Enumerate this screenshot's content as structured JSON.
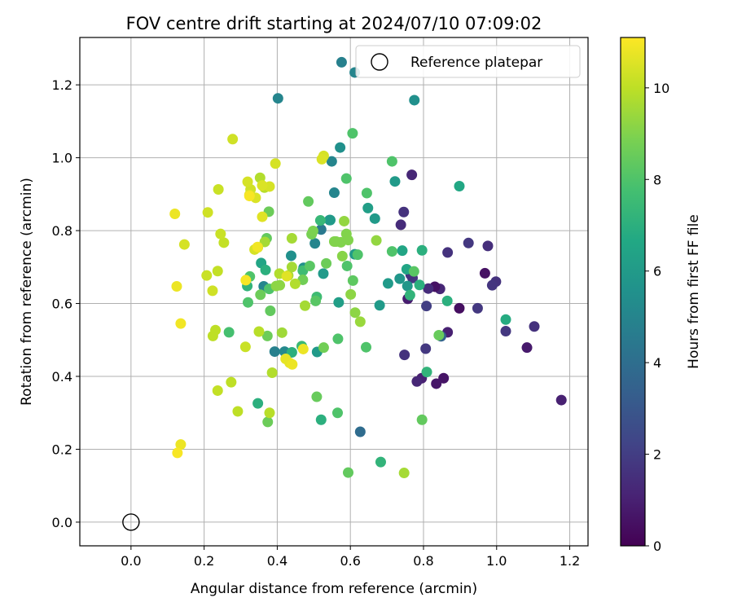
{
  "chart_data": {
    "type": "scatter",
    "title": "FOV centre drift starting at 2024/07/10 07:09:02",
    "xlabel": "Angular distance from reference (arcmin)",
    "ylabel": "Rotation from reference (arcmin)",
    "xlim": [
      -0.14,
      1.25
    ],
    "ylim": [
      -0.065,
      1.33
    ],
    "xticks": [
      0.0,
      0.2,
      0.4,
      0.6,
      0.8,
      1.0,
      1.2
    ],
    "yticks": [
      0.0,
      0.2,
      0.4,
      0.6,
      0.8,
      1.0,
      1.2
    ],
    "grid": true,
    "legend": {
      "position": "top-right",
      "entries": [
        "Reference platepar"
      ]
    },
    "reference_point": {
      "x": 0.0,
      "y": 0.0
    },
    "colorbar": {
      "label": "Hours from first FF file",
      "colormap": "viridis",
      "range": [
        0,
        11.1
      ],
      "ticks": [
        0,
        2,
        4,
        6,
        8,
        10
      ]
    },
    "series": [
      {
        "points": [
          {
            "x": 1.177,
            "y": 0.335,
            "c": 1.0
          },
          {
            "x": 1.103,
            "y": 0.537,
            "c": 1.6
          },
          {
            "x": 1.083,
            "y": 0.479,
            "c": 0.8
          },
          {
            "x": 1.025,
            "y": 0.524,
            "c": 1.8
          },
          {
            "x": 0.998,
            "y": 0.66,
            "c": 1.6
          },
          {
            "x": 0.988,
            "y": 0.65,
            "c": 1.7
          },
          {
            "x": 0.976,
            "y": 0.758,
            "c": 1.5
          },
          {
            "x": 0.968,
            "y": 0.683,
            "c": 0.5
          },
          {
            "x": 0.923,
            "y": 0.766,
            "c": 1.8
          },
          {
            "x": 0.948,
            "y": 0.587,
            "c": 1.8
          },
          {
            "x": 0.898,
            "y": 0.587,
            "c": 0.4
          },
          {
            "x": 0.866,
            "y": 0.74,
            "c": 1.6
          },
          {
            "x": 0.866,
            "y": 0.521,
            "c": 1.0
          },
          {
            "x": 0.855,
            "y": 0.395,
            "c": 0.6
          },
          {
            "x": 0.835,
            "y": 0.38,
            "c": 0.7
          },
          {
            "x": 0.845,
            "y": 0.64,
            "c": 1.2
          },
          {
            "x": 0.831,
            "y": 0.646,
            "c": 0.5
          },
          {
            "x": 0.813,
            "y": 0.641,
            "c": 1.4
          },
          {
            "x": 0.808,
            "y": 0.593,
            "c": 2.0
          },
          {
            "x": 0.806,
            "y": 0.476,
            "c": 1.8
          },
          {
            "x": 0.795,
            "y": 0.395,
            "c": 1.0
          },
          {
            "x": 0.782,
            "y": 0.386,
            "c": 1.2
          },
          {
            "x": 0.77,
            "y": 0.67,
            "c": 1.8
          },
          {
            "x": 0.768,
            "y": 0.953,
            "c": 1.2
          },
          {
            "x": 0.765,
            "y": 0.679,
            "c": 1.6
          },
          {
            "x": 0.748,
            "y": 0.459,
            "c": 1.6
          },
          {
            "x": 0.746,
            "y": 0.851,
            "c": 1.6
          },
          {
            "x": 0.738,
            "y": 0.816,
            "c": 1.4
          },
          {
            "x": 0.757,
            "y": 0.613,
            "c": 0.9
          },
          {
            "x": 0.848,
            "y": 0.51,
            "c": 3.5
          },
          {
            "x": 0.627,
            "y": 0.248,
            "c": 3.9
          },
          {
            "x": 0.612,
            "y": 1.234,
            "c": 5.0
          },
          {
            "x": 0.576,
            "y": 1.262,
            "c": 4.8
          },
          {
            "x": 0.402,
            "y": 1.163,
            "c": 5.0
          },
          {
            "x": 0.775,
            "y": 1.158,
            "c": 5.5
          },
          {
            "x": 0.572,
            "y": 1.028,
            "c": 5.5
          },
          {
            "x": 0.549,
            "y": 0.99,
            "c": 5.0
          },
          {
            "x": 0.556,
            "y": 0.904,
            "c": 5.0
          },
          {
            "x": 0.543,
            "y": 0.829,
            "c": 5.5
          },
          {
            "x": 0.52,
            "y": 0.803,
            "c": 4.5
          },
          {
            "x": 0.503,
            "y": 0.765,
            "c": 5.0
          },
          {
            "x": 0.438,
            "y": 0.731,
            "c": 5.5
          },
          {
            "x": 0.472,
            "y": 0.698,
            "c": 5.5
          },
          {
            "x": 0.363,
            "y": 0.647,
            "c": 5.0
          },
          {
            "x": 0.393,
            "y": 0.468,
            "c": 4.8
          },
          {
            "x": 0.42,
            "y": 0.468,
            "c": 5.2
          },
          {
            "x": 0.509,
            "y": 0.467,
            "c": 6.0
          },
          {
            "x": 0.612,
            "y": 0.735,
            "c": 6.0
          },
          {
            "x": 0.667,
            "y": 0.833,
            "c": 6.0
          },
          {
            "x": 0.648,
            "y": 0.862,
            "c": 6.2
          },
          {
            "x": 0.722,
            "y": 0.935,
            "c": 6.0
          },
          {
            "x": 0.735,
            "y": 0.668,
            "c": 5.8
          },
          {
            "x": 0.756,
            "y": 0.648,
            "c": 5.8
          },
          {
            "x": 0.703,
            "y": 0.655,
            "c": 6.0
          },
          {
            "x": 0.68,
            "y": 0.595,
            "c": 6.0
          },
          {
            "x": 0.568,
            "y": 0.603,
            "c": 6.2
          },
          {
            "x": 0.526,
            "y": 0.682,
            "c": 6.0
          },
          {
            "x": 0.545,
            "y": 0.829,
            "c": 6.0
          },
          {
            "x": 0.898,
            "y": 0.922,
            "c": 6.6
          },
          {
            "x": 0.742,
            "y": 0.745,
            "c": 6.5
          },
          {
            "x": 0.754,
            "y": 0.694,
            "c": 6.5
          },
          {
            "x": 0.789,
            "y": 0.651,
            "c": 7.0
          },
          {
            "x": 0.796,
            "y": 0.746,
            "c": 7.0
          },
          {
            "x": 0.865,
            "y": 0.607,
            "c": 7.0
          },
          {
            "x": 1.025,
            "y": 0.556,
            "c": 6.8
          },
          {
            "x": 0.809,
            "y": 0.412,
            "c": 7.2
          },
          {
            "x": 0.763,
            "y": 0.623,
            "c": 7.2
          },
          {
            "x": 0.683,
            "y": 0.165,
            "c": 7.2
          },
          {
            "x": 0.52,
            "y": 0.281,
            "c": 7.0
          },
          {
            "x": 0.356,
            "y": 0.711,
            "c": 6.5
          },
          {
            "x": 0.347,
            "y": 0.326,
            "c": 7.0
          },
          {
            "x": 0.318,
            "y": 0.648,
            "c": 7.2
          },
          {
            "x": 0.467,
            "y": 0.483,
            "c": 7.5
          },
          {
            "x": 0.508,
            "y": 0.618,
            "c": 7.6
          },
          {
            "x": 0.518,
            "y": 0.828,
            "c": 7.4
          },
          {
            "x": 0.47,
            "y": 0.69,
            "c": 7.6
          },
          {
            "x": 0.44,
            "y": 0.466,
            "c": 7.0
          },
          {
            "x": 0.368,
            "y": 0.692,
            "c": 7.0
          },
          {
            "x": 0.714,
            "y": 0.99,
            "c": 8.0
          },
          {
            "x": 0.606,
            "y": 1.067,
            "c": 8.0
          },
          {
            "x": 0.589,
            "y": 0.943,
            "c": 8.0
          },
          {
            "x": 0.645,
            "y": 0.903,
            "c": 8.0
          },
          {
            "x": 0.714,
            "y": 0.743,
            "c": 8.0
          },
          {
            "x": 0.62,
            "y": 0.734,
            "c": 8.0
          },
          {
            "x": 0.591,
            "y": 0.703,
            "c": 8.0
          },
          {
            "x": 0.607,
            "y": 0.663,
            "c": 8.3
          },
          {
            "x": 0.566,
            "y": 0.503,
            "c": 8.0
          },
          {
            "x": 0.643,
            "y": 0.48,
            "c": 8.0
          },
          {
            "x": 0.565,
            "y": 0.3,
            "c": 8.0
          },
          {
            "x": 0.594,
            "y": 0.136,
            "c": 8.4
          },
          {
            "x": 0.796,
            "y": 0.281,
            "c": 8.4
          },
          {
            "x": 0.842,
            "y": 0.513,
            "c": 8.5
          },
          {
            "x": 0.774,
            "y": 0.688,
            "c": 8.2
          },
          {
            "x": 0.268,
            "y": 0.521,
            "c": 7.8
          },
          {
            "x": 0.32,
            "y": 0.603,
            "c": 8.0
          },
          {
            "x": 0.325,
            "y": 0.674,
            "c": 8.0
          },
          {
            "x": 0.378,
            "y": 0.64,
            "c": 8.0
          },
          {
            "x": 0.489,
            "y": 0.703,
            "c": 8.2
          },
          {
            "x": 0.485,
            "y": 0.88,
            "c": 8.4
          },
          {
            "x": 0.505,
            "y": 0.607,
            "c": 8.2
          },
          {
            "x": 0.508,
            "y": 0.344,
            "c": 8.5
          },
          {
            "x": 0.374,
            "y": 0.275,
            "c": 8.6
          },
          {
            "x": 0.371,
            "y": 0.779,
            "c": 8.4
          },
          {
            "x": 0.354,
            "y": 0.624,
            "c": 8.6
          },
          {
            "x": 0.377,
            "y": 0.852,
            "c": 8.6
          },
          {
            "x": 0.381,
            "y": 0.58,
            "c": 8.4
          },
          {
            "x": 0.373,
            "y": 0.511,
            "c": 8.6
          },
          {
            "x": 0.527,
            "y": 0.479,
            "c": 8.7
          },
          {
            "x": 0.47,
            "y": 0.665,
            "c": 8.7
          },
          {
            "x": 0.534,
            "y": 0.71,
            "c": 8.6
          },
          {
            "x": 0.494,
            "y": 0.79,
            "c": 8.8
          },
          {
            "x": 0.498,
            "y": 0.799,
            "c": 8.9
          },
          {
            "x": 0.561,
            "y": 0.77,
            "c": 9.0
          },
          {
            "x": 0.574,
            "y": 0.768,
            "c": 9.0
          },
          {
            "x": 0.578,
            "y": 0.73,
            "c": 9.1
          },
          {
            "x": 0.583,
            "y": 0.826,
            "c": 9.3
          },
          {
            "x": 0.601,
            "y": 0.625,
            "c": 9.2
          },
          {
            "x": 0.627,
            "y": 0.55,
            "c": 9.4
          },
          {
            "x": 0.613,
            "y": 0.575,
            "c": 9.2
          },
          {
            "x": 0.671,
            "y": 0.773,
            "c": 9.3
          },
          {
            "x": 0.747,
            "y": 0.135,
            "c": 9.6
          },
          {
            "x": 0.589,
            "y": 0.791,
            "c": 9.0
          },
          {
            "x": 0.556,
            "y": 0.77,
            "c": 9.0
          },
          {
            "x": 0.594,
            "y": 0.774,
            "c": 9.0
          },
          {
            "x": 0.397,
            "y": 0.648,
            "c": 9.2
          },
          {
            "x": 0.407,
            "y": 0.65,
            "c": 9.2
          },
          {
            "x": 0.413,
            "y": 0.52,
            "c": 9.5
          },
          {
            "x": 0.44,
            "y": 0.779,
            "c": 9.6
          },
          {
            "x": 0.44,
            "y": 0.7,
            "c": 9.6
          },
          {
            "x": 0.476,
            "y": 0.594,
            "c": 9.6
          },
          {
            "x": 0.449,
            "y": 0.654,
            "c": 9.8
          },
          {
            "x": 0.43,
            "y": 0.677,
            "c": 9.7
          },
          {
            "x": 0.406,
            "y": 0.682,
            "c": 9.8
          },
          {
            "x": 0.366,
            "y": 0.769,
            "c": 9.6
          },
          {
            "x": 0.353,
            "y": 0.945,
            "c": 9.8
          },
          {
            "x": 0.365,
            "y": 0.918,
            "c": 9.9
          },
          {
            "x": 0.386,
            "y": 0.41,
            "c": 9.8
          },
          {
            "x": 0.379,
            "y": 0.3,
            "c": 9.9
          },
          {
            "x": 0.35,
            "y": 0.523,
            "c": 9.9
          },
          {
            "x": 0.313,
            "y": 0.481,
            "c": 10.2
          },
          {
            "x": 0.292,
            "y": 0.304,
            "c": 10.0
          },
          {
            "x": 0.274,
            "y": 0.384,
            "c": 10.0
          },
          {
            "x": 0.237,
            "y": 0.361,
            "c": 10.1
          },
          {
            "x": 0.231,
            "y": 0.527,
            "c": 10.0
          },
          {
            "x": 0.224,
            "y": 0.511,
            "c": 10.0
          },
          {
            "x": 0.237,
            "y": 0.689,
            "c": 10.1
          },
          {
            "x": 0.254,
            "y": 0.767,
            "c": 10.1
          },
          {
            "x": 0.239,
            "y": 0.913,
            "c": 10.2
          },
          {
            "x": 0.245,
            "y": 0.791,
            "c": 10.2
          },
          {
            "x": 0.223,
            "y": 0.635,
            "c": 10.3
          },
          {
            "x": 0.207,
            "y": 0.677,
            "c": 10.2
          },
          {
            "x": 0.21,
            "y": 0.85,
            "c": 10.3
          },
          {
            "x": 0.278,
            "y": 1.051,
            "c": 10.3
          },
          {
            "x": 0.327,
            "y": 0.913,
            "c": 10.3
          },
          {
            "x": 0.347,
            "y": 0.754,
            "c": 10.4
          },
          {
            "x": 0.338,
            "y": 0.748,
            "c": 10.4
          },
          {
            "x": 0.319,
            "y": 0.934,
            "c": 10.4
          },
          {
            "x": 0.341,
            "y": 0.89,
            "c": 10.5
          },
          {
            "x": 0.324,
            "y": 0.898,
            "c": 10.6
          },
          {
            "x": 0.395,
            "y": 0.984,
            "c": 10.4
          },
          {
            "x": 0.379,
            "y": 0.921,
            "c": 10.4
          },
          {
            "x": 0.359,
            "y": 0.924,
            "c": 10.5
          },
          {
            "x": 0.359,
            "y": 0.838,
            "c": 10.6
          },
          {
            "x": 0.426,
            "y": 0.675,
            "c": 10.6
          },
          {
            "x": 0.423,
            "y": 0.448,
            "c": 10.7
          },
          {
            "x": 0.434,
            "y": 0.437,
            "c": 10.7
          },
          {
            "x": 0.441,
            "y": 0.433,
            "c": 10.8
          },
          {
            "x": 0.471,
            "y": 0.475,
            "c": 10.8
          },
          {
            "x": 0.527,
            "y": 1.005,
            "c": 10.4
          },
          {
            "x": 0.522,
            "y": 0.996,
            "c": 10.5
          },
          {
            "x": 0.146,
            "y": 0.762,
            "c": 10.4
          },
          {
            "x": 0.12,
            "y": 0.846,
            "c": 10.8
          },
          {
            "x": 0.125,
            "y": 0.647,
            "c": 10.8
          },
          {
            "x": 0.136,
            "y": 0.545,
            "c": 10.9
          },
          {
            "x": 0.136,
            "y": 0.213,
            "c": 10.8
          },
          {
            "x": 0.127,
            "y": 0.19,
            "c": 11.0
          },
          {
            "x": 0.314,
            "y": 0.664,
            "c": 11.0
          },
          {
            "x": 0.346,
            "y": 0.755,
            "c": 10.9
          },
          {
            "x": 0.324,
            "y": 0.895,
            "c": 11.0
          }
        ]
      }
    ]
  }
}
